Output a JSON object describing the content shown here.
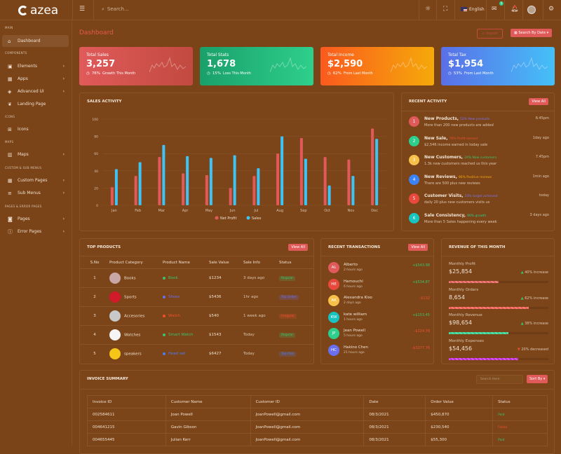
{
  "brand": "azea",
  "header": {
    "search_placeholder": "Search...",
    "language": "English",
    "mail_badge": "5"
  },
  "sidebar": {
    "sections": [
      {
        "label": "MAIN",
        "items": [
          {
            "label": "Dashboard",
            "icon": "home-icon",
            "active": true
          }
        ]
      },
      {
        "label": "COMPONENTS",
        "items": [
          {
            "label": "Elements",
            "icon": "box-icon"
          },
          {
            "label": "Apps",
            "icon": "grid-icon"
          },
          {
            "label": "Advanced UI",
            "icon": "layers-icon"
          },
          {
            "label": "Landing Page",
            "icon": "leaf-icon"
          }
        ]
      },
      {
        "label": "ICONS",
        "items": [
          {
            "label": "Icons",
            "icon": "gift-icon"
          }
        ]
      },
      {
        "label": "MAPS",
        "items": [
          {
            "label": "Maps",
            "icon": "map-icon"
          }
        ]
      },
      {
        "label": "CUSTOM & SUB MENUS",
        "items": [
          {
            "label": "Custom Pages",
            "icon": "grid-icon"
          },
          {
            "label": "Sub Menus",
            "icon": "list-icon"
          }
        ]
      },
      {
        "label": "PAGES & ERROR PAGES",
        "items": [
          {
            "label": "Pages",
            "icon": "package-icon"
          },
          {
            "label": "Error Pages",
            "icon": "alert-icon"
          }
        ]
      }
    ]
  },
  "page": {
    "title": "Dashboard",
    "import_label": "Import",
    "search_by_date_label": "Search By Date"
  },
  "stats": [
    {
      "title": "Total Sales",
      "value": "3,257",
      "pct": "76%",
      "note": "Growth This Month",
      "gradient": [
        "#e05a5a",
        "#c24a40"
      ]
    },
    {
      "title": "Total Stats",
      "value": "1,678",
      "pct": "15%",
      "note": "Loss This Month",
      "gradient": [
        "#1aa06a",
        "#2ecf8c"
      ]
    },
    {
      "title": "Total Income",
      "value": "$2,590",
      "pct": "62%",
      "note": "From Last Month",
      "gradient": [
        "#fb5a1e",
        "#f5a90a"
      ]
    },
    {
      "title": "Total Tax",
      "value": "$1,954",
      "pct": "53%",
      "note": "From Last Month",
      "gradient": [
        "#5a6fe8",
        "#45c0f8"
      ]
    }
  ],
  "sales_activity": {
    "title": "SALES ACTIVITY"
  },
  "chart_data": {
    "type": "bar",
    "categories": [
      "Jan",
      "Feb",
      "Mar",
      "Apr",
      "May",
      "Jun",
      "Jul",
      "Aug",
      "Sep",
      "Oct",
      "Nov",
      "Dec"
    ],
    "series": [
      {
        "name": "Net Profit",
        "color": "#e05a5a",
        "values": [
          21,
          34,
          56,
          37,
          35,
          20,
          34,
          60,
          78,
          56,
          53,
          89
        ]
      },
      {
        "name": "Sales",
        "color": "#3fc3f5",
        "values": [
          42,
          50,
          70,
          57,
          55,
          58,
          43,
          80,
          54,
          23,
          34,
          77
        ]
      }
    ],
    "ylim": [
      0,
      100
    ],
    "yticks": [
      0,
      20,
      40,
      60,
      80,
      100
    ],
    "grid": true,
    "legend": "bottom"
  },
  "recent_activity": {
    "title": "RECENT ACTIVITY",
    "view_all": "View All",
    "items": [
      {
        "n": "1",
        "title": "New Products,",
        "tag": "52% New products",
        "tag_color": "#7b74f0",
        "desc": "More than 200 new products are added",
        "time": "6:45pm",
        "color": "#e05a5a"
      },
      {
        "n": "2",
        "title": "New Sale,",
        "tag": "76% Profit earned",
        "tag_color": "#f05030",
        "desc": "$2,546 income earned in today sale",
        "time": "1day ago",
        "color": "#2ecf8c"
      },
      {
        "n": "3",
        "title": "New Customers,",
        "tag": "24% New customers",
        "tag_color": "#3ac46c",
        "desc": "1.3k new customers reached us this year",
        "time": "7.45pm",
        "color": "#f7c04a"
      },
      {
        "n": "4",
        "title": "New Reviews,",
        "tag": "96% Positive reviews",
        "tag_color": "#f5a90a",
        "desc": "There are 500 plus new reviews",
        "time": "1min ago",
        "color": "#3b82f6"
      },
      {
        "n": "5",
        "title": "Customer Visits,",
        "tag": "33% target achieved",
        "tag_color": "#7b74f0",
        "desc": "daily 20 plus new customers visits us",
        "time": "today",
        "color": "#e8493c"
      },
      {
        "n": "6",
        "title": "Sale Consistency,",
        "tag": "90% growth",
        "tag_color": "#2ecf8c",
        "desc": "More than 5 Sales happening every week",
        "time": "3 days ago",
        "color": "#18c3c0"
      }
    ]
  },
  "top_products": {
    "title": "TOP PRODUCTS",
    "view_all": "View All",
    "columns": [
      "S.No",
      "Product Category",
      "Product Name",
      "Sale Value",
      "Sale Info",
      "Status"
    ],
    "rows": [
      {
        "no": "1",
        "category": "Books",
        "name": "Book",
        "name_color": "#3ac46c",
        "value": "$1234",
        "info": "3 days ago",
        "status": "Regular",
        "status_color": "#3ac46c",
        "img": "#c9a6a6"
      },
      {
        "no": "2",
        "category": "Sports",
        "name": "Shoes",
        "name_color": "#6a6ff0",
        "value": "$5436",
        "info": "1hr ago",
        "status": "Top Seller",
        "status_color": "#6a6ff0",
        "img": "#d11a2a"
      },
      {
        "no": "3",
        "category": "Accesories",
        "name": "Watch",
        "name_color": "#f05030",
        "value": "$540",
        "info": "1 week ago",
        "status": "Irregular",
        "status_color": "#f05030",
        "img": "#c8c8c8"
      },
      {
        "no": "4",
        "category": "Watches",
        "name": "Smart Watch",
        "name_color": "#3ac46c",
        "value": "$1543",
        "info": "Today",
        "status": "Regular",
        "status_color": "#3ac46c",
        "img": "#f5f5f5"
      },
      {
        "no": "5",
        "category": "speakers",
        "name": "Head set",
        "name_color": "#4f7bf0",
        "value": "$6427",
        "info": "Today",
        "status": "Top Pick",
        "status_color": "#4f7bf0",
        "img": "#f5c518"
      }
    ]
  },
  "transactions": {
    "title": "RECENT TRANSACTIONS",
    "view_all": "View All",
    "items": [
      {
        "initials": "AL",
        "name": "Alberto",
        "time": "2 hours ago",
        "amount": "+$543.98",
        "positive": true,
        "color": "#e05a5a"
      },
      {
        "initials": "HE",
        "name": "Hamouchi",
        "time": "6 hours ago",
        "amount": "+$534.87",
        "positive": true,
        "color": "#e8493c"
      },
      {
        "initials": "AK",
        "name": "Alexandra Kiso",
        "time": "2 days ago",
        "amount": "-$132",
        "positive": false,
        "color": "#f7c04a"
      },
      {
        "initials": "KW",
        "name": "kate william",
        "time": "1 hours ago",
        "amount": "+$153.45",
        "positive": true,
        "color": "#18c3c0"
      },
      {
        "initials": "JP",
        "name": "Jean Powell",
        "time": "5 hours ago",
        "amount": "-$124.78",
        "positive": false,
        "color": "#2ecf8c"
      },
      {
        "initials": "HC",
        "name": "Hakino Chen",
        "time": "21 hours ago",
        "amount": "-$3277.76",
        "positive": false,
        "color": "#6a6ff0"
      }
    ]
  },
  "revenue": {
    "title": "REVENUE OF THIS MONTH",
    "items": [
      {
        "label": "Monthly Profit",
        "value": "$25,854",
        "change": "40% increase",
        "up": true,
        "progress": 50,
        "color": "#e05a5a"
      },
      {
        "label": "Monthly Orders",
        "value": "8,654",
        "change": "62% increase",
        "up": true,
        "progress": 80,
        "color": "#f05a50"
      },
      {
        "label": "Monthly Revenue",
        "value": "$98,654",
        "change": "38% increase",
        "up": true,
        "progress": 60,
        "color": "#2ecf8c"
      },
      {
        "label": "Monthly Expenses",
        "value": "$54,456",
        "change": "20% decreased",
        "up": false,
        "progress": 70,
        "color": "#c02ad8"
      }
    ]
  },
  "invoice": {
    "title": "INVOICE SUMMARY",
    "search_placeholder": "Search Here",
    "sort_label": "Sort By",
    "columns": [
      "Invoice ID",
      "Customer Name",
      "Customer ID",
      "Date",
      "Order Value",
      "Status"
    ],
    "rows": [
      {
        "id": "002584611",
        "name": "Joan Powell",
        "cid": "JoanPowell@gmail.com",
        "date": "08/3/2021",
        "value": "$450,870",
        "status": "Paid",
        "status_color": "#3ac46c"
      },
      {
        "id": "004641215",
        "name": "Gavin Gibson",
        "cid": "JoanPowell@gmail.com",
        "date": "08/3/2021",
        "value": "$230,540",
        "status": "Failed",
        "status_color": "#f05030"
      },
      {
        "id": "004655445",
        "name": "Julian Kerr",
        "cid": "JoanPowell@gmail.com",
        "date": "08/3/2021",
        "value": "$55,300",
        "status": "Paid",
        "status_color": "#3ac46c"
      }
    ]
  }
}
